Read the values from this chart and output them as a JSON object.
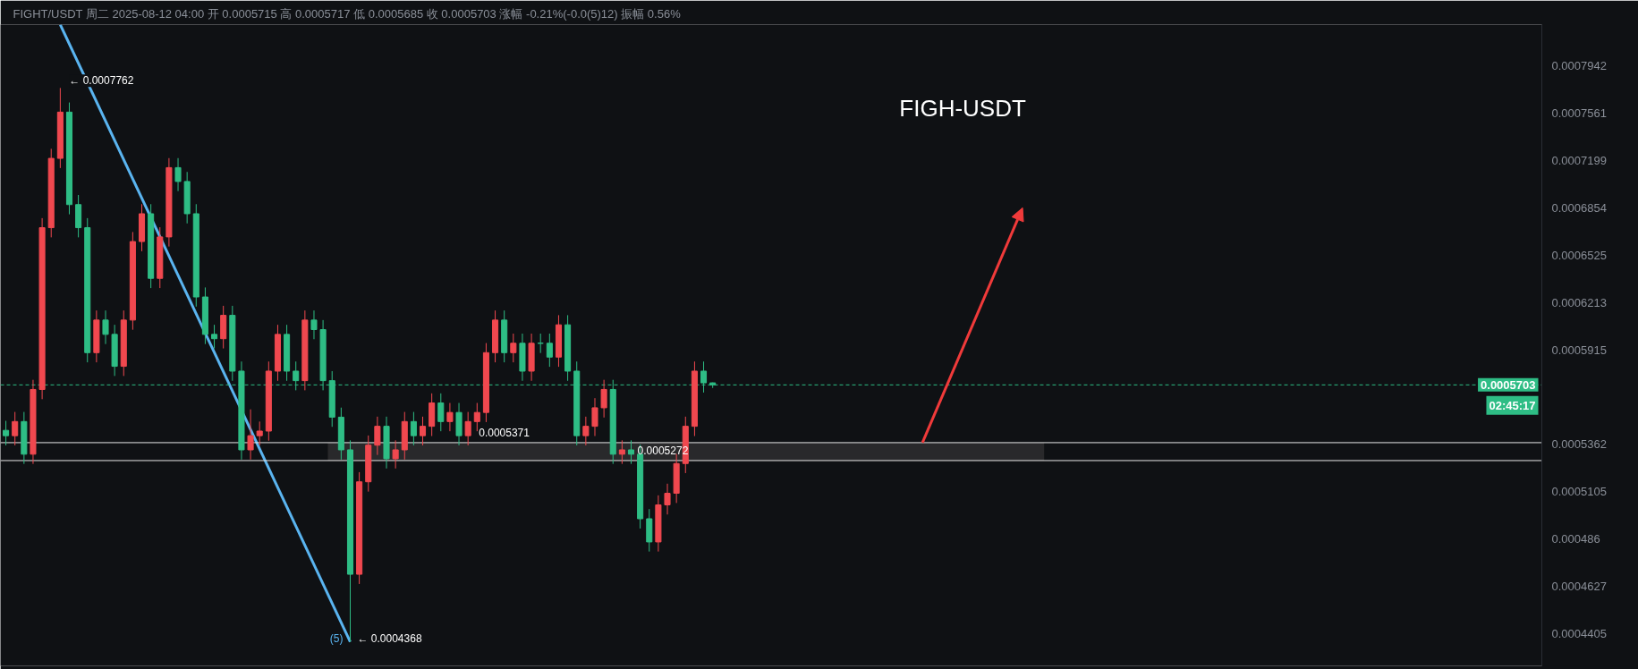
{
  "chart_data": {
    "type": "candlestick",
    "subtitle": "FIGHT/USDT 周二 2025-08-12 04:00 开 0.0005715 高 0.0005717 低 0.0005685 收 0.0005703 涨幅 -0.21%(-0.0(5)12) 振幅 0.56%",
    "categories": [
      null,
      null,
      null,
      null,
      null,
      null,
      null,
      null,
      null,
      null,
      null,
      null,
      null,
      null,
      null,
      null,
      null,
      null,
      null,
      null,
      null,
      null,
      null,
      null,
      null,
      null,
      null,
      null,
      null,
      null,
      null,
      null,
      null,
      null,
      null,
      null,
      null,
      null,
      null,
      null,
      null,
      null,
      null,
      null,
      null,
      null,
      null,
      null,
      null,
      null,
      null,
      null,
      null,
      null,
      null,
      null,
      null,
      null,
      null,
      null,
      null,
      null,
      null,
      null,
      null,
      null,
      null,
      null,
      null,
      null,
      null,
      null,
      null,
      null,
      null,
      null,
      null,
      null,
      null,
      null,
      null,
      null,
      null,
      null,
      null,
      null,
      null,
      null,
      null,
      null,
      null,
      null,
      null,
      null,
      null,
      null,
      null,
      null,
      null,
      null,
      null,
      null,
      null,
      null,
      null,
      null,
      null,
      null,
      null,
      null,
      null,
      null,
      null,
      null,
      null,
      null,
      null,
      null,
      null,
      null,
      null,
      null,
      null,
      null,
      null,
      null,
      null,
      null,
      null,
      null,
      null,
      null,
      null,
      null,
      null,
      null,
      null,
      null,
      null,
      null,
      null,
      null,
      null,
      null,
      null,
      null,
      null,
      null,
      null,
      null,
      null,
      null,
      null,
      null,
      null,
      null,
      null,
      null,
      null,
      null,
      null,
      null,
      null,
      null,
      null,
      null,
      null,
      null,
      null,
      null
    ],
    "ohlc": [
      [
        0.000544,
        0.0005494,
        0.0005356,
        0.000541
      ],
      [
        0.000541,
        0.0005545,
        0.0005356,
        0.000549
      ],
      [
        0.000549,
        0.0005545,
        0.0005254,
        0.0005307
      ],
      [
        0.0005307,
        0.0005733,
        0.0005254,
        0.0005676
      ],
      [
        0.0005676,
        0.0006781,
        0.0005619,
        0.0006714
      ],
      [
        0.0006714,
        0.0007287,
        0.0006647,
        0.0007215
      ],
      [
        0.0007215,
        0.0007762,
        0.0007143,
        0.000757
      ],
      [
        0.000757,
        0.0007646,
        0.0006808,
        0.0006877
      ],
      [
        0.0006877,
        0.0006946,
        0.0006647,
        0.0006714
      ],
      [
        0.0006714,
        0.0006781,
        0.0005838,
        0.0005897
      ],
      [
        0.0005897,
        0.0006161,
        0.0005838,
        0.00061
      ],
      [
        0.00061,
        0.0006161,
        0.000595,
        0.000601
      ],
      [
        0.000601,
        0.000607,
        0.0005756,
        0.0005814
      ],
      [
        0.0005814,
        0.0006161,
        0.0005756,
        0.00061
      ],
      [
        0.00061,
        0.0006684,
        0.0006039,
        0.0006618
      ],
      [
        0.0006618,
        0.000688,
        0.0006552,
        0.0006812
      ],
      [
        0.0006812,
        0.000688,
        0.0006306,
        0.000637
      ],
      [
        0.000637,
        0.0006717,
        0.0006306,
        0.000665
      ],
      [
        0.000665,
        0.0007217,
        0.0006584,
        0.0007146
      ],
      [
        0.0007146,
        0.0007217,
        0.0006974,
        0.0007044
      ],
      [
        0.0007044,
        0.0007114,
        0.0006744,
        0.0006812
      ],
      [
        0.0006812,
        0.000688,
        0.0006186,
        0.0006248
      ],
      [
        0.0006248,
        0.000631,
        0.000595,
        0.000601
      ],
      [
        0.000601,
        0.000607,
        0.0005923,
        0.0005983
      ],
      [
        0.0005983,
        0.0006191,
        0.0005923,
        0.000613
      ],
      [
        0.000613,
        0.0006191,
        0.0005727,
        0.0005785
      ],
      [
        0.0005785,
        0.0005843,
        0.0005278,
        0.0005331
      ],
      [
        0.0005331,
        0.000556,
        0.0005278,
        0.000541
      ],
      [
        0.000541,
        0.000549,
        0.0005356,
        0.0005436
      ],
      [
        0.0005436,
        0.0005843,
        0.0005382,
        0.0005785
      ],
      [
        0.0005785,
        0.000607,
        0.0005727,
        0.000601
      ],
      [
        0.000601,
        0.000607,
        0.0005727,
        0.0005785
      ],
      [
        0.0005785,
        0.0005843,
        0.0005671,
        0.0005728
      ],
      [
        0.0005728,
        0.0006161,
        0.0005671,
        0.00061
      ],
      [
        0.00061,
        0.0006161,
        0.000598,
        0.000604
      ],
      [
        0.000604,
        0.00061,
        0.0005671,
        0.0005728
      ],
      [
        0.0005728,
        0.0005785,
        0.000546,
        0.0005515
      ],
      [
        0.0005515,
        0.000557,
        0.0005278,
        0.0005331
      ],
      [
        0.0005331,
        0.0005384,
        0.0004368,
        0.0004685
      ],
      [
        0.0004685,
        0.0005209,
        0.0004638,
        0.0005157
      ],
      [
        0.0005157,
        0.0005411,
        0.0005105,
        0.0005357
      ],
      [
        0.0005357,
        0.0005518,
        0.0005303,
        0.0005463
      ],
      [
        0.0005463,
        0.0005518,
        0.0005229,
        0.0005282
      ],
      [
        0.0005282,
        0.0005384,
        0.0005229,
        0.0005331
      ],
      [
        0.0005331,
        0.0005545,
        0.0005278,
        0.000549
      ],
      [
        0.000549,
        0.0005545,
        0.0005356,
        0.000541
      ],
      [
        0.000541,
        0.0005518,
        0.0005356,
        0.0005463
      ],
      [
        0.0005463,
        0.0005653,
        0.0005408,
        0.0005597
      ],
      [
        0.0005597,
        0.0005653,
        0.0005435,
        0.000549
      ],
      [
        0.000549,
        0.0005597,
        0.0005435,
        0.0005542
      ],
      [
        0.0005542,
        0.0005597,
        0.0005356,
        0.000541
      ],
      [
        0.000541,
        0.0005545,
        0.0005356,
        0.000549
      ],
      [
        0.000549,
        0.0005597,
        0.0005435,
        0.0005542
      ],
      [
        0.0005542,
        0.0005956,
        0.0005487,
        0.0005897
      ],
      [
        0.0005897,
        0.0006161,
        0.0005838,
        0.00061
      ],
      [
        0.00061,
        0.0006161,
        0.0005838,
        0.0005897
      ],
      [
        0.0005897,
        0.0006015,
        0.0005838,
        0.0005955
      ],
      [
        0.0005955,
        0.0006015,
        0.0005727,
        0.0005785
      ],
      [
        0.0005785,
        0.0006015,
        0.0005727,
        0.0005955
      ],
      [
        0.0005955,
        0.0006015,
        0.0005895,
        0.0005955
      ],
      [
        0.0005955,
        0.0006015,
        0.0005811,
        0.000587
      ],
      [
        0.000587,
        0.0006131,
        0.0005811,
        0.000607
      ],
      [
        0.000607,
        0.0006131,
        0.0005727,
        0.0005785
      ],
      [
        0.0005785,
        0.0005843,
        0.0005356,
        0.000541
      ],
      [
        0.000541,
        0.0005518,
        0.0005356,
        0.0005463
      ],
      [
        0.0005463,
        0.0005625,
        0.0005408,
        0.0005569
      ],
      [
        0.0005569,
        0.0005733,
        0.0005513,
        0.0005676
      ],
      [
        0.0005676,
        0.0005733,
        0.0005254,
        0.0005307
      ],
      [
        0.0005307,
        0.0005384,
        0.0005254,
        0.0005331
      ],
      [
        0.0005331,
        0.0005384,
        0.0005254,
        0.0005307
      ],
      [
        0.0005307,
        0.000536,
        0.0004913,
        0.0004963
      ],
      [
        0.0004963,
        0.0005013,
        0.0004797,
        0.0004845
      ],
      [
        0.0004845,
        0.0005085,
        0.0004797,
        0.0005035
      ],
      [
        0.0005035,
        0.0005147,
        0.0004985,
        0.0005096
      ],
      [
        0.0005096,
        0.0005309,
        0.0005045,
        0.0005256
      ],
      [
        0.0005256,
        0.0005518,
        0.0005204,
        0.0005463
      ],
      [
        0.0005463,
        0.0005843,
        0.0005408,
        0.0005785
      ],
      [
        0.0005785,
        0.0005843,
        0.0005658,
        0.0005715
      ],
      [
        0.0005715,
        0.0005717,
        0.0005685,
        0.0005703
      ],
      null,
      null,
      null,
      null,
      null,
      null,
      null,
      null,
      null,
      null,
      null,
      null,
      null,
      null,
      null,
      null,
      null,
      null,
      null,
      null,
      null,
      null,
      null,
      null,
      null,
      null,
      null,
      null,
      null,
      null,
      null,
      null,
      null,
      null,
      null,
      null,
      null,
      null,
      null,
      null,
      null,
      null,
      null,
      null,
      null,
      null,
      null,
      null,
      null,
      null,
      null,
      null,
      null,
      null,
      null,
      null,
      null,
      null,
      null,
      null,
      null,
      null,
      null,
      null,
      null,
      null,
      null,
      null,
      null,
      null,
      null,
      null,
      null,
      null,
      null,
      null,
      null,
      null,
      null,
      null,
      null,
      null,
      null,
      null,
      null,
      null,
      null,
      null,
      null,
      null,
      null
    ],
    "colors": [
      "#2ebd85",
      "#f0484f",
      "#2ebd85",
      "#f0484f",
      "#f0484f",
      "#f0484f",
      "#f0484f",
      "#2ebd85",
      "#2ebd85",
      "#2ebd85",
      "#f0484f",
      "#2ebd85",
      "#2ebd85",
      "#f0484f",
      "#f0484f",
      "#f0484f",
      "#2ebd85",
      "#f0484f",
      "#f0484f",
      "#2ebd85",
      "#2ebd85",
      "#2ebd85",
      "#2ebd85",
      "#2ebd85",
      "#f0484f",
      "#2ebd85",
      "#2ebd85",
      "#f0484f",
      "#f0484f",
      "#f0484f",
      "#f0484f",
      "#2ebd85",
      "#2ebd85",
      "#f0484f",
      "#2ebd85",
      "#2ebd85",
      "#2ebd85",
      "#2ebd85",
      "#2ebd85",
      "#f0484f",
      "#f0484f",
      "#f0484f",
      "#2ebd85",
      "#f0484f",
      "#f0484f",
      "#2ebd85",
      "#f0484f",
      "#f0484f",
      "#2ebd85",
      "#f0484f",
      "#2ebd85",
      "#f0484f",
      "#f0484f",
      "#f0484f",
      "#f0484f",
      "#2ebd85",
      "#f0484f",
      "#2ebd85",
      "#f0484f",
      "#2ebd85",
      "#2ebd85",
      "#f0484f",
      "#2ebd85",
      "#2ebd85",
      "#f0484f",
      "#f0484f",
      "#f0484f",
      "#2ebd85",
      "#f0484f",
      "#2ebd85",
      "#2ebd85",
      "#2ebd85",
      "#f0484f",
      "#f0484f",
      "#f0484f",
      "#f0484f",
      "#f0484f",
      "#2ebd85",
      "#2ebd85",
      null,
      null,
      null,
      null,
      null,
      null,
      null,
      null,
      null,
      null,
      null,
      null,
      null,
      null,
      null,
      null,
      null,
      null,
      null,
      null,
      null,
      null,
      null,
      null,
      null,
      null,
      null,
      null,
      null,
      null,
      null,
      null,
      null,
      null,
      null,
      null,
      null,
      null,
      null,
      null,
      null,
      null,
      null,
      null,
      null,
      null,
      null,
      null,
      null,
      null,
      null,
      null,
      null,
      null,
      null,
      null,
      null,
      null,
      null,
      null,
      null,
      null,
      null,
      null,
      null,
      null,
      null,
      null,
      null,
      null,
      null,
      null,
      null,
      null,
      null,
      null,
      null,
      null,
      null,
      null,
      null,
      null,
      null,
      null,
      null,
      null,
      null,
      null,
      null,
      null,
      null
    ],
    "series": [
      {
        "type": "line",
        "color": "#5ab4f0",
        "values": [
          null,
          null,
          null,
          null,
          null,
          null,
          0.000829,
          null,
          null,
          null,
          null,
          null,
          null,
          null,
          null,
          null,
          null,
          null,
          null,
          null,
          null,
          null,
          null,
          null,
          null,
          null,
          null,
          null,
          null,
          null,
          null,
          null,
          null,
          null,
          null,
          null,
          null,
          null,
          0.0004368,
          null,
          null,
          null,
          null,
          null,
          null,
          null,
          null,
          null,
          null,
          null,
          null,
          null,
          null,
          null,
          null,
          null,
          null,
          null,
          null,
          null,
          null,
          null,
          null,
          null,
          null,
          null,
          null,
          null,
          null,
          null,
          null,
          null,
          null,
          null,
          null,
          null,
          null,
          null,
          null,
          null,
          null,
          null,
          null,
          null,
          null,
          null,
          null,
          null,
          null,
          null,
          null,
          null,
          null,
          null,
          null,
          null,
          null,
          null,
          null,
          null,
          null,
          null,
          null,
          null,
          null,
          null,
          null,
          null,
          null,
          null,
          null,
          null,
          null,
          null,
          null,
          null,
          null,
          null,
          null,
          null,
          null,
          null,
          null,
          null,
          null,
          null,
          null,
          null,
          null,
          null,
          null,
          null,
          null,
          null,
          null,
          null,
          null,
          null,
          null,
          null,
          null,
          null,
          null,
          null,
          null,
          null,
          null,
          null,
          null,
          null,
          null,
          null,
          null,
          null,
          null,
          null,
          null,
          null,
          null,
          null,
          null,
          null,
          null,
          null,
          null,
          null,
          null,
          null,
          null,
          null
        ]
      }
    ],
    "log": true,
    "ylim": [
      0.000426,
      0.000829
    ],
    "yticks": [
      0.0007942,
      0.0007561,
      0.0007199,
      0.0006854,
      0.0006525,
      0.0006213,
      0.0005915,
      0.0005362,
      0.0005105,
      0.000486,
      0.0004627,
      0.0004405
    ],
    "tick_labels": "y",
    "grid": false,
    "ref_lines": [
      {
        "axis": "y",
        "value": 0.0005703,
        "label": "0.0005703",
        "color": "#2ebd85",
        "line_style": "dashed"
      },
      {
        "axis": "y",
        "value": 0.0005371,
        "label": "0.0005371",
        "color": "#e8e8e8",
        "line_style": "solid"
      },
      {
        "axis": "y",
        "value": 0.0005272,
        "label": "0.0005272",
        "color": "#e8e8e8",
        "line_style": "solid"
      }
    ],
    "bands": [
      {
        "axis": "y",
        "from": 0.0005272,
        "to": 0.0005371,
        "color": "#3a3a3a"
      }
    ],
    "annotations": [
      "FIGH-USDT",
      "02:45:17",
      "← 0.0007762",
      "← 0.0004368",
      "(5)"
    ]
  }
}
